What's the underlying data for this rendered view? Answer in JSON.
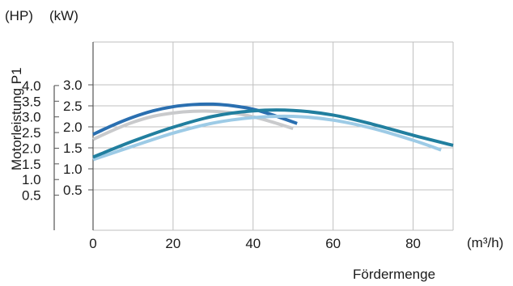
{
  "chart_data": {
    "type": "line",
    "ylabel": "Motorleistung P1",
    "xlabel": "Fördermenge",
    "x_unit": "(m³/h)",
    "hp_unit": "(HP)",
    "kw_unit": "(kW)",
    "xlim": [
      0,
      90
    ],
    "kw_lim": [
      0,
      3.0
    ],
    "x_ticks": [
      0,
      20,
      40,
      60,
      80
    ],
    "x_tick_labels": [
      "0",
      "20",
      "40",
      "60",
      "80"
    ],
    "kw_ticks": [
      0.5,
      1.0,
      1.5,
      2.0,
      2.5,
      3.0
    ],
    "kw_tick_labels": [
      "0.5",
      "1.0",
      "1.5",
      "2.0",
      "2.5",
      "3.0"
    ],
    "hp_ticks": [
      0.5,
      1.0,
      1.5,
      2.0,
      2.5,
      3.0,
      3.5,
      4.0
    ],
    "hp_tick_labels": [
      "0.5",
      "1.0",
      "1.5",
      "2.0",
      "2.5",
      "3.0",
      "3.5",
      "4.0"
    ],
    "hp_per_kw": 1.341,
    "grid": true,
    "series": [
      {
        "color": "#c9cacc",
        "x": [
          0,
          5,
          10,
          15,
          20,
          25,
          30,
          35,
          40,
          45,
          50
        ],
        "y": [
          1.7,
          1.92,
          2.11,
          2.25,
          2.33,
          2.37,
          2.37,
          2.33,
          2.24,
          2.11,
          1.96
        ]
      },
      {
        "color": "#2a6fb0",
        "x": [
          0,
          5,
          10,
          15,
          20,
          25,
          30,
          35,
          40,
          45,
          51
        ],
        "y": [
          1.82,
          2.04,
          2.23,
          2.38,
          2.48,
          2.53,
          2.54,
          2.5,
          2.42,
          2.28,
          2.08
        ]
      },
      {
        "color": "#9dcbe6",
        "x": [
          0,
          10,
          20,
          30,
          40,
          50,
          60,
          70,
          80,
          87
        ],
        "y": [
          1.22,
          1.54,
          1.85,
          2.09,
          2.22,
          2.25,
          2.16,
          1.96,
          1.68,
          1.45
        ]
      },
      {
        "color": "#217f9f",
        "x": [
          0,
          10,
          20,
          30,
          40,
          50,
          60,
          70,
          80,
          90
        ],
        "y": [
          1.28,
          1.66,
          1.99,
          2.25,
          2.38,
          2.39,
          2.28,
          2.06,
          1.8,
          1.56
        ]
      }
    ]
  }
}
